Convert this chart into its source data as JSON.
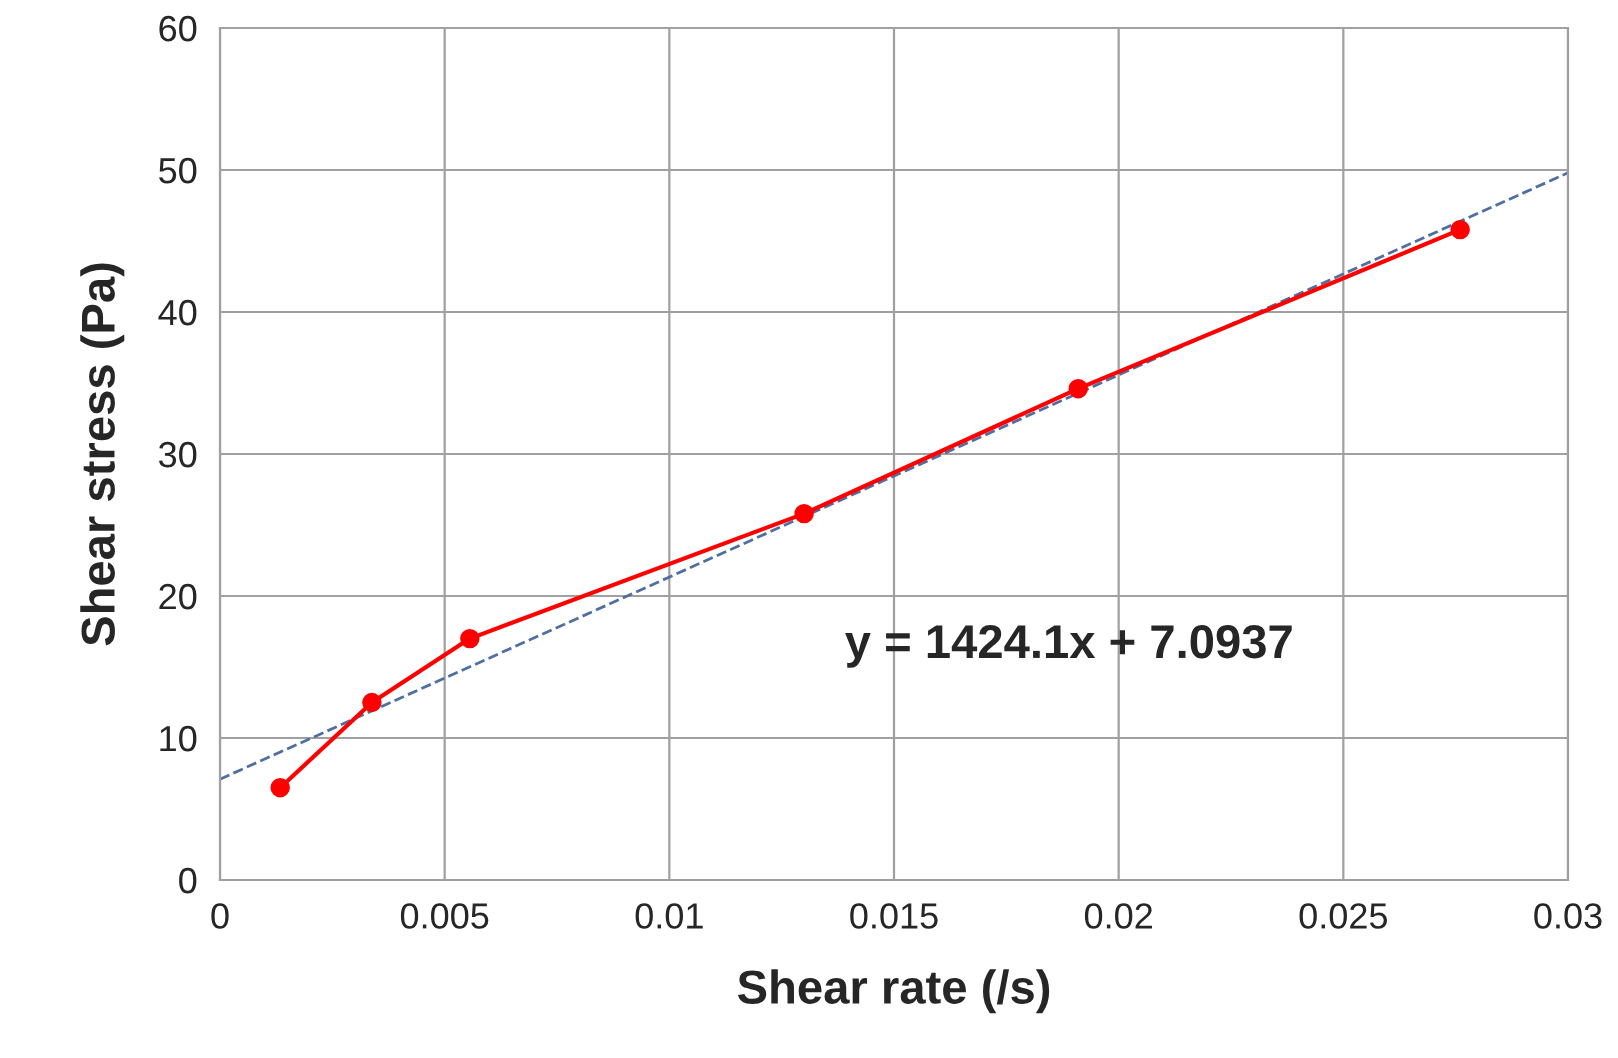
{
  "chart_data": {
    "type": "line",
    "xlabel": "Shear rate (/s)",
    "ylabel": "Shear stress (Pa)",
    "xlim": [
      0,
      0.03
    ],
    "xticks": [
      0,
      0.005,
      0.01,
      0.015,
      0.02,
      0.025,
      0.03
    ],
    "ylim": [
      0,
      60
    ],
    "yticks": [
      0,
      10,
      20,
      30,
      40,
      50,
      60
    ],
    "grid": true,
    "marker": "circle",
    "series": [
      {
        "color": "#ff0000",
        "x": [
          0.00134,
          0.00338,
          0.00556,
          0.013,
          0.0191,
          0.0276
        ],
        "values": [
          6.5,
          12.5,
          17.0,
          25.8,
          34.6,
          45.8
        ]
      },
      {
        "color": "#4f6fa0",
        "line_style": "dashed",
        "marker": "none",
        "x": [
          0,
          0.03
        ],
        "values": [
          7.1,
          49.8
        ]
      }
    ],
    "annotations": [
      "y = 1424.1x + 7.0937"
    ]
  }
}
